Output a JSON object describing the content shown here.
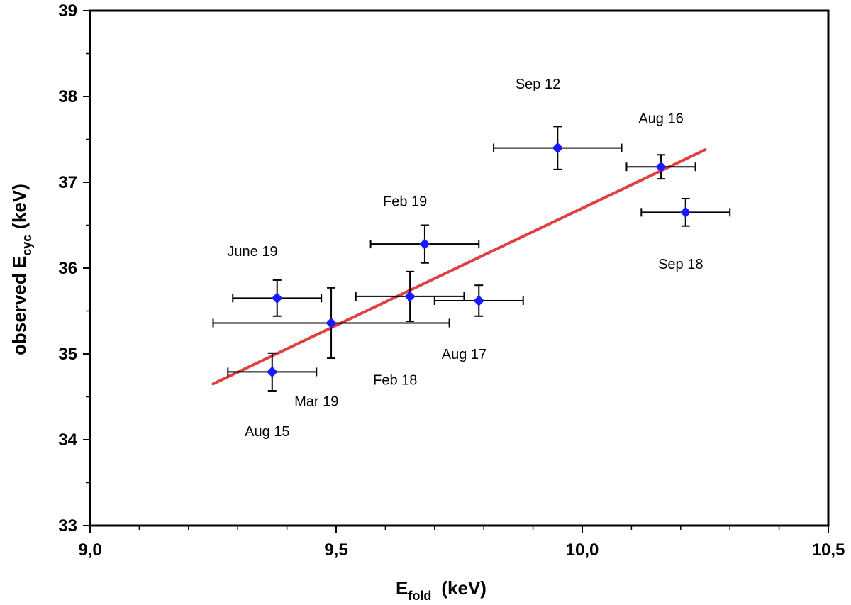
{
  "chart_data": {
    "type": "scatter",
    "title": "",
    "xlabel": {
      "main": "E",
      "sub": "fold",
      "unit": "(keV)"
    },
    "ylabel": {
      "main": "observed E",
      "sub": "cyc",
      "unit": "(keV)"
    },
    "xlim": [
      9.0,
      10.5
    ],
    "ylim": [
      33,
      39
    ],
    "x_ticks": [
      9.0,
      9.5,
      10.0,
      10.5
    ],
    "x_tick_labels": [
      "9,0",
      "9,5",
      "10,0",
      "10,5"
    ],
    "y_ticks": [
      33,
      34,
      35,
      36,
      37,
      38,
      39
    ],
    "y_tick_labels": [
      "33",
      "34",
      "35",
      "36",
      "37",
      "38",
      "39"
    ],
    "grid": false,
    "legend": "none",
    "marker_color": "#1a1aff",
    "fit_color": "#e04040",
    "points": [
      {
        "label": "Aug 15",
        "x": 9.37,
        "y": 34.79,
        "xerr": 0.09,
        "yerr": 0.22,
        "label_x": 9.36,
        "label_y": 34.1
      },
      {
        "label": "Mar 19",
        "x": 9.49,
        "y": 35.36,
        "xerr": 0.24,
        "yerr": 0.41,
        "label_x": 9.46,
        "label_y": 34.45
      },
      {
        "label": "June 19",
        "x": 9.38,
        "y": 35.65,
        "xerr": 0.09,
        "yerr": 0.21,
        "label_x": 9.33,
        "label_y": 36.2
      },
      {
        "label": "Feb 18",
        "x": 9.65,
        "y": 35.67,
        "xerr": 0.11,
        "yerr": 0.29,
        "label_x": 9.62,
        "label_y": 34.7
      },
      {
        "label": "Aug 17",
        "x": 9.79,
        "y": 35.62,
        "xerr": 0.09,
        "yerr": 0.18,
        "label_x": 9.76,
        "label_y": 35.0
      },
      {
        "label": "Feb 19",
        "x": 9.68,
        "y": 36.28,
        "xerr": 0.11,
        "yerr": 0.22,
        "label_x": 9.64,
        "label_y": 36.78
      },
      {
        "label": "Sep 12",
        "x": 9.95,
        "y": 37.4,
        "xerr": 0.13,
        "yerr": 0.25,
        "label_x": 9.91,
        "label_y": 38.15
      },
      {
        "label": "Aug 16",
        "x": 10.16,
        "y": 37.18,
        "xerr": 0.07,
        "yerr": 0.14,
        "label_x": 10.16,
        "label_y": 37.75
      },
      {
        "label": "Sep 18",
        "x": 10.21,
        "y": 36.65,
        "xerr": 0.09,
        "yerr": 0.16,
        "label_x": 10.2,
        "label_y": 36.05
      }
    ],
    "fit_line": {
      "x": [
        9.25,
        10.25
      ],
      "y": [
        34.65,
        37.38
      ]
    }
  }
}
